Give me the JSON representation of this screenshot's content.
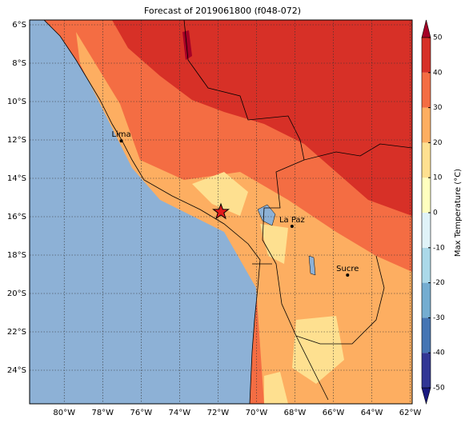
{
  "map": {
    "title": "Forecast of 2019061800 (f048-072)",
    "extent": {
      "lon": [
        -81.8,
        -61.9
      ],
      "lat": [
        -25.75,
        -5.75
      ]
    },
    "lon_ticks": [
      {
        "value": -80,
        "label": "80°W"
      },
      {
        "value": -78,
        "label": "78°W"
      },
      {
        "value": -76,
        "label": "76°W"
      },
      {
        "value": -74,
        "label": "74°W"
      },
      {
        "value": -72,
        "label": "72°W"
      },
      {
        "value": -70,
        "label": "70°W"
      },
      {
        "value": -68,
        "label": "68°W"
      },
      {
        "value": -66,
        "label": "66°W"
      },
      {
        "value": -64,
        "label": "64°W"
      },
      {
        "value": -62,
        "label": "62°W"
      }
    ],
    "lat_ticks": [
      {
        "value": -6,
        "label": "6°S"
      },
      {
        "value": -8,
        "label": "8°S"
      },
      {
        "value": -10,
        "label": "10°S"
      },
      {
        "value": -12,
        "label": "12°S"
      },
      {
        "value": -14,
        "label": "14°S"
      },
      {
        "value": -16,
        "label": "16°S"
      },
      {
        "value": -18,
        "label": "18°S"
      },
      {
        "value": -20,
        "label": "20°S"
      },
      {
        "value": -22,
        "label": "22°S"
      },
      {
        "value": -24,
        "label": "24°S"
      }
    ],
    "cities": [
      {
        "name": "Lima",
        "lon": -77.03,
        "lat": -12.05
      },
      {
        "name": "La Paz",
        "lon": -68.15,
        "lat": -16.5
      },
      {
        "name": "Sucre",
        "lon": -65.26,
        "lat": -19.04
      }
    ],
    "marker": {
      "lon": -71.85,
      "lat": -15.75
    },
    "colorbar": {
      "label": "Max Temperature (°C)",
      "ticks": [
        -50,
        -40,
        -30,
        -20,
        -10,
        0,
        10,
        20,
        30,
        40,
        50
      ],
      "colors": [
        "#1a1a80",
        "#313695",
        "#4575b4",
        "#74add1",
        "#abd9e9",
        "#e0f3f8",
        "#ffffbf",
        "#fee090",
        "#fdae61",
        "#f46d43",
        "#d73027",
        "#a50026"
      ]
    }
  }
}
